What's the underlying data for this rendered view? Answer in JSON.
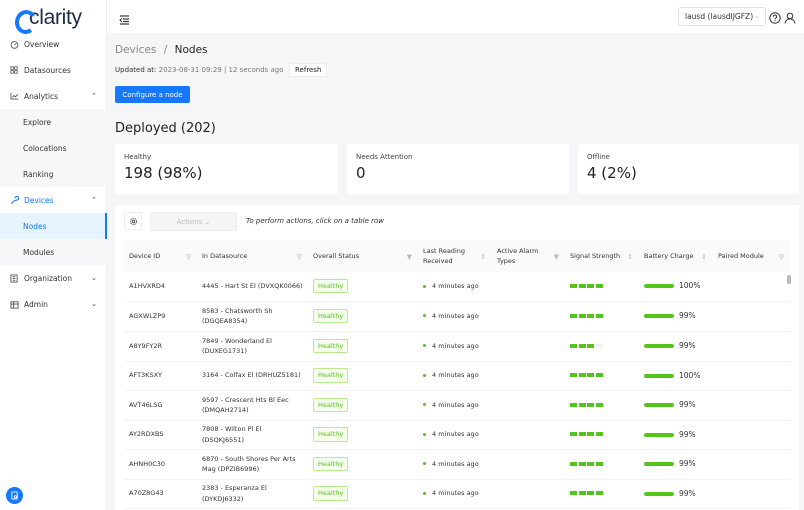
{
  "app": {
    "logo_text": "clarity"
  },
  "sidebar": {
    "items": [
      {
        "label": "Overview",
        "icon": "dashboard-icon"
      },
      {
        "label": "Datasources",
        "icon": "grid-icon"
      },
      {
        "label": "Analytics",
        "icon": "line-chart-icon",
        "expanded": true,
        "children": [
          {
            "label": "Explore"
          },
          {
            "label": "Colocations"
          },
          {
            "label": "Ranking"
          }
        ]
      },
      {
        "label": "Devices",
        "icon": "wrench-icon",
        "expanded": true,
        "active": true,
        "children": [
          {
            "label": "Nodes",
            "active": true
          },
          {
            "label": "Modules"
          }
        ]
      },
      {
        "label": "Organization",
        "icon": "building-icon",
        "expanded": false
      },
      {
        "label": "Admin",
        "icon": "admin-icon",
        "expanded": false
      }
    ]
  },
  "header": {
    "org_selector": "lausd (lausdIJGFZ)",
    "icons": [
      "help-icon",
      "user-icon"
    ]
  },
  "page": {
    "breadcrumb": {
      "parent": "Devices",
      "separator": "/",
      "current": "Nodes"
    },
    "updated_label": "Updated at:",
    "updated_value": "2023-08-31 09:29 | 12 seconds ago",
    "refresh_label": "Refresh",
    "configure_label": "Configure a node",
    "deployed_title": "Deployed (202)"
  },
  "stats": [
    {
      "label": "Healthy",
      "value": "198 (98%)"
    },
    {
      "label": "Needs Attention",
      "value": "0"
    },
    {
      "label": "Offline",
      "value": "4 (2%)"
    }
  ],
  "toolbar": {
    "actions_label": "Actions ⌄",
    "hint": "To perform actions, click on a table row"
  },
  "table": {
    "columns": [
      {
        "label": "Device ID",
        "icon": "search-icon"
      },
      {
        "label": "In Datasource",
        "icon": "search-icon"
      },
      {
        "label": "Overall Status",
        "icon": "filter-icon"
      },
      {
        "label": "Last Reading Received",
        "icon": "sort-icon"
      },
      {
        "label": "Active Alarm Types",
        "icon": "filter-icon"
      },
      {
        "label": "Signal Strength",
        "icon": "sort-icon"
      },
      {
        "label": "Battery Charge",
        "icon": "sort-icon"
      },
      {
        "label": "Paired Module",
        "icon": "search-icon"
      }
    ],
    "rows": [
      {
        "device_id": "A1HVXRD4",
        "datasource": "4445 - Hart St El (DVXQK0066)",
        "status": "Healthy",
        "last_reading": "4 minutes ago",
        "alarms": "",
        "signal": 4,
        "battery": 100,
        "battery_label": "100%",
        "module": ""
      },
      {
        "device_id": "AGXWLZP9",
        "datasource": "8583 - Chatsworth Sh (DGQEA8354)",
        "status": "Healthy",
        "last_reading": "4 minutes ago",
        "alarms": "",
        "signal": 4,
        "battery": 99,
        "battery_label": "99%",
        "module": ""
      },
      {
        "device_id": "A8Y9FY2R",
        "datasource": "7849 - Wonderland El (DUXEG1731)",
        "status": "Healthy",
        "last_reading": "4 minutes ago",
        "alarms": "",
        "signal": 3,
        "battery": 99,
        "battery_label": "99%",
        "module": ""
      },
      {
        "device_id": "AFT3KSXY",
        "datasource": "3164 - Colfax El (DRHUZ5181)",
        "status": "Healthy",
        "last_reading": "4 minutes ago",
        "alarms": "",
        "signal": 4,
        "battery": 100,
        "battery_label": "100%",
        "module": ""
      },
      {
        "device_id": "AVT46LSG",
        "datasource": "9597 - Crescent Hts Bl Eec (DMQAH2714)",
        "status": "Healthy",
        "last_reading": "4 minutes ago",
        "alarms": "",
        "signal": 4,
        "battery": 99,
        "battery_label": "99%",
        "module": ""
      },
      {
        "device_id": "AY2RDXBS",
        "datasource": "7808 - Wilton Pl El (DSQKJ6551)",
        "status": "Healthy",
        "last_reading": "4 minutes ago",
        "alarms": "",
        "signal": 4,
        "battery": 99,
        "battery_label": "99%",
        "module": ""
      },
      {
        "device_id": "AHNH0C30",
        "datasource": "6870 - South Shores Per Arts Mag (DPZIB6996)",
        "status": "Healthy",
        "last_reading": "4 minutes ago",
        "alarms": "",
        "signal": 4,
        "battery": 99,
        "battery_label": "99%",
        "module": ""
      },
      {
        "device_id": "A70Z8G43",
        "datasource": "2383 - Esperanza El (DYKDJ6332)",
        "status": "Healthy",
        "last_reading": "4 minutes ago",
        "alarms": "",
        "signal": 4,
        "battery": 99,
        "battery_label": "99%",
        "module": ""
      }
    ]
  },
  "colors": {
    "primary": "#1677ff",
    "success": "#52c41a",
    "tag_bg": "#f6ffed",
    "tag_border": "#b7eb8f",
    "active_nav_bg": "#e6f4ff"
  }
}
